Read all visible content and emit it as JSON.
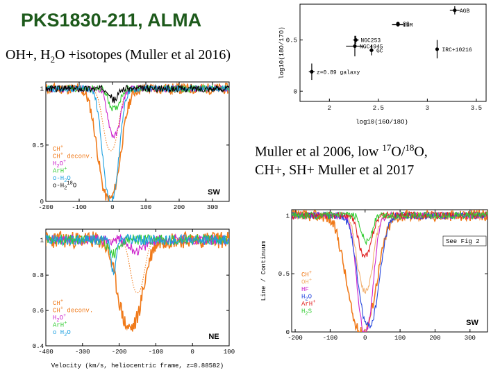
{
  "slide": {
    "title": "PKS1830-211, ALMA",
    "subtitle_pre": "OH+, H",
    "subtitle_sub": "2",
    "subtitle_post": "O +isotopes (Muller et al 2016)",
    "note_line1_a": "Muller et al 2006,      low ",
    "note_sup1": "17",
    "note_line1_b": "O/",
    "note_sup2": "18",
    "note_line1_c": "O,",
    "note_line2": "CH+, SH+ Muller et al 2017"
  },
  "chart_data": [
    {
      "id": "isotope_ratio",
      "type": "scatter",
      "xlabel": "log10(16O/18O)",
      "ylabel": "log10(18O/17O)",
      "xlim": [
        1.7,
        3.6
      ],
      "ylim": [
        -0.1,
        0.85
      ],
      "x_ticks": [
        "2",
        "2.5",
        "3",
        "3.5"
      ],
      "y_ticks": [
        "0.5",
        "0"
      ],
      "y_tick_values": [
        0.5,
        0
      ],
      "points": [
        {
          "name": "z=0.89 galaxy",
          "x": 1.82,
          "y": 0.19,
          "xerr": 0.03,
          "yerr": 0.08
        },
        {
          "name": "NGC4945",
          "x": 2.26,
          "y": 0.44,
          "xerr": 0.09,
          "yerr": 0.1
        },
        {
          "name": "NGC253",
          "x": 2.27,
          "y": 0.5,
          "xerr": 0.03,
          "yerr": 0.04
        },
        {
          "name": "GC",
          "x": 2.43,
          "y": 0.4,
          "xerr": 0.02,
          "yerr": 0.05
        },
        {
          "name": "SS",
          "x": 2.7,
          "y": 0.66,
          "xerr": 0.01,
          "yerr": 0.01
        },
        {
          "name": "ISM",
          "x": 2.7,
          "y": 0.65,
          "xerr": 0.06,
          "yerr": 0.02
        },
        {
          "name": "IRC+10216",
          "x": 3.1,
          "y": 0.41,
          "xerr": 0.01,
          "yerr": 0.09
        },
        {
          "name": "AGB",
          "x": 3.28,
          "y": 0.79,
          "xerr": 0.05,
          "yerr": 0.04
        }
      ]
    },
    {
      "id": "SW_2016",
      "type": "line",
      "tag": "SW",
      "xlim": [
        -200,
        350
      ],
      "ylim": [
        0,
        1.06
      ],
      "x_ticks": [
        -200,
        -100,
        0,
        100,
        200,
        300
      ],
      "y_ticks": [
        0,
        0.5,
        1
      ],
      "y_tick_labels": [
        "0",
        "0.5",
        "1"
      ],
      "series": [
        {
          "name": "CH+",
          "color": "#f07a1a",
          "style": "solid",
          "depth": 0.98,
          "center": -10,
          "width": 45
        },
        {
          "name": "CH+ deconv.",
          "color": "#f07a1a",
          "style": "dotted",
          "depth": 0.55,
          "center": -5,
          "width": 30
        },
        {
          "name": "H2O+",
          "color": "#cc22cc",
          "style": "solid",
          "depth": 0.42,
          "center": 5,
          "width": 25
        },
        {
          "name": "ArH+",
          "color": "#33cc33",
          "style": "solid",
          "depth": 0.18,
          "center": 5,
          "width": 22
        },
        {
          "name": "o-H2O",
          "color": "#1a9fe0",
          "style": "solid",
          "depth": 1.0,
          "center": -5,
          "width": 32
        },
        {
          "name": "o-H2 18O",
          "color": "#000000",
          "style": "solid",
          "depth": 0.1,
          "center": 5,
          "width": 15
        }
      ],
      "legend": [
        "CH+",
        "CH+ deconv.",
        "H2O+",
        "ArH+",
        "o-H2O",
        "o-H2 18O"
      ]
    },
    {
      "id": "NE_2016",
      "type": "line",
      "tag": "NE",
      "xlabel": "Velocity (km/s, heliocentric frame, z=0.88582)",
      "xlim": [
        -400,
        100
      ],
      "ylim": [
        0.4,
        1.06
      ],
      "x_ticks": [
        -400,
        -300,
        -200,
        -100,
        0,
        100
      ],
      "y_ticks": [
        0.4,
        0.6,
        0.8,
        1
      ],
      "y_tick_labels": [
        "0.4",
        "0.6",
        "0.8",
        "1"
      ],
      "series": [
        {
          "name": "CH+",
          "color": "#f07a1a",
          "style": "solid",
          "depth": 0.5,
          "center": -170,
          "width": 45
        },
        {
          "name": "CH+ deconv.",
          "color": "#f07a1a",
          "style": "dotted",
          "depth": 0.3,
          "center": -150,
          "width": 25
        },
        {
          "name": "H2O+",
          "color": "#cc22cc",
          "style": "solid",
          "depth": 0.06,
          "center": -150,
          "width": 30
        },
        {
          "name": "ArH+",
          "color": "#33cc33",
          "style": "solid",
          "depth": 0.08,
          "center": -215,
          "width": 20
        },
        {
          "name": "o-H2O",
          "color": "#1a9fe0",
          "style": "solid",
          "depth": 0.18,
          "center": -215,
          "width": 10
        }
      ],
      "legend": [
        "CH+",
        "CH+ deconv.",
        "H2O+",
        "ArH+",
        "o H2O"
      ]
    },
    {
      "id": "SW_2017",
      "type": "line",
      "tag": "SW",
      "annotation": "See Fig 2",
      "ylabel": "Line / Continuum",
      "xlim": [
        -210,
        350
      ],
      "ylim": [
        0,
        1.05
      ],
      "x_ticks": [
        -200,
        -100,
        0,
        100,
        200,
        300
      ],
      "y_ticks": [
        0,
        0.5,
        1
      ],
      "y_tick_labels": [
        "0",
        "0.5",
        "1"
      ],
      "series": [
        {
          "name": "CH+",
          "color": "#f07a1a",
          "style": "solid",
          "depth": 1.0,
          "center": -10,
          "width": 55
        },
        {
          "name": "OH+",
          "color": "#f2b070",
          "style": "solid",
          "depth": 0.65,
          "center": 0,
          "width": 30
        },
        {
          "name": "HF",
          "color": "#cc22cc",
          "style": "solid",
          "depth": 1.0,
          "center": 0,
          "width": 30
        },
        {
          "name": "H2O",
          "color": "#2244dd",
          "style": "solid",
          "depth": 0.95,
          "center": 10,
          "width": 40
        },
        {
          "name": "ArH+",
          "color": "#e02020",
          "style": "solid",
          "depth": 0.35,
          "center": 0,
          "width": 25
        },
        {
          "name": "H2S",
          "color": "#33cc33",
          "style": "solid",
          "depth": 0.22,
          "center": 5,
          "width": 20
        }
      ],
      "legend": [
        "CH+",
        "OH+",
        "HF",
        "H2O",
        "ArH+",
        "H2S"
      ]
    }
  ]
}
